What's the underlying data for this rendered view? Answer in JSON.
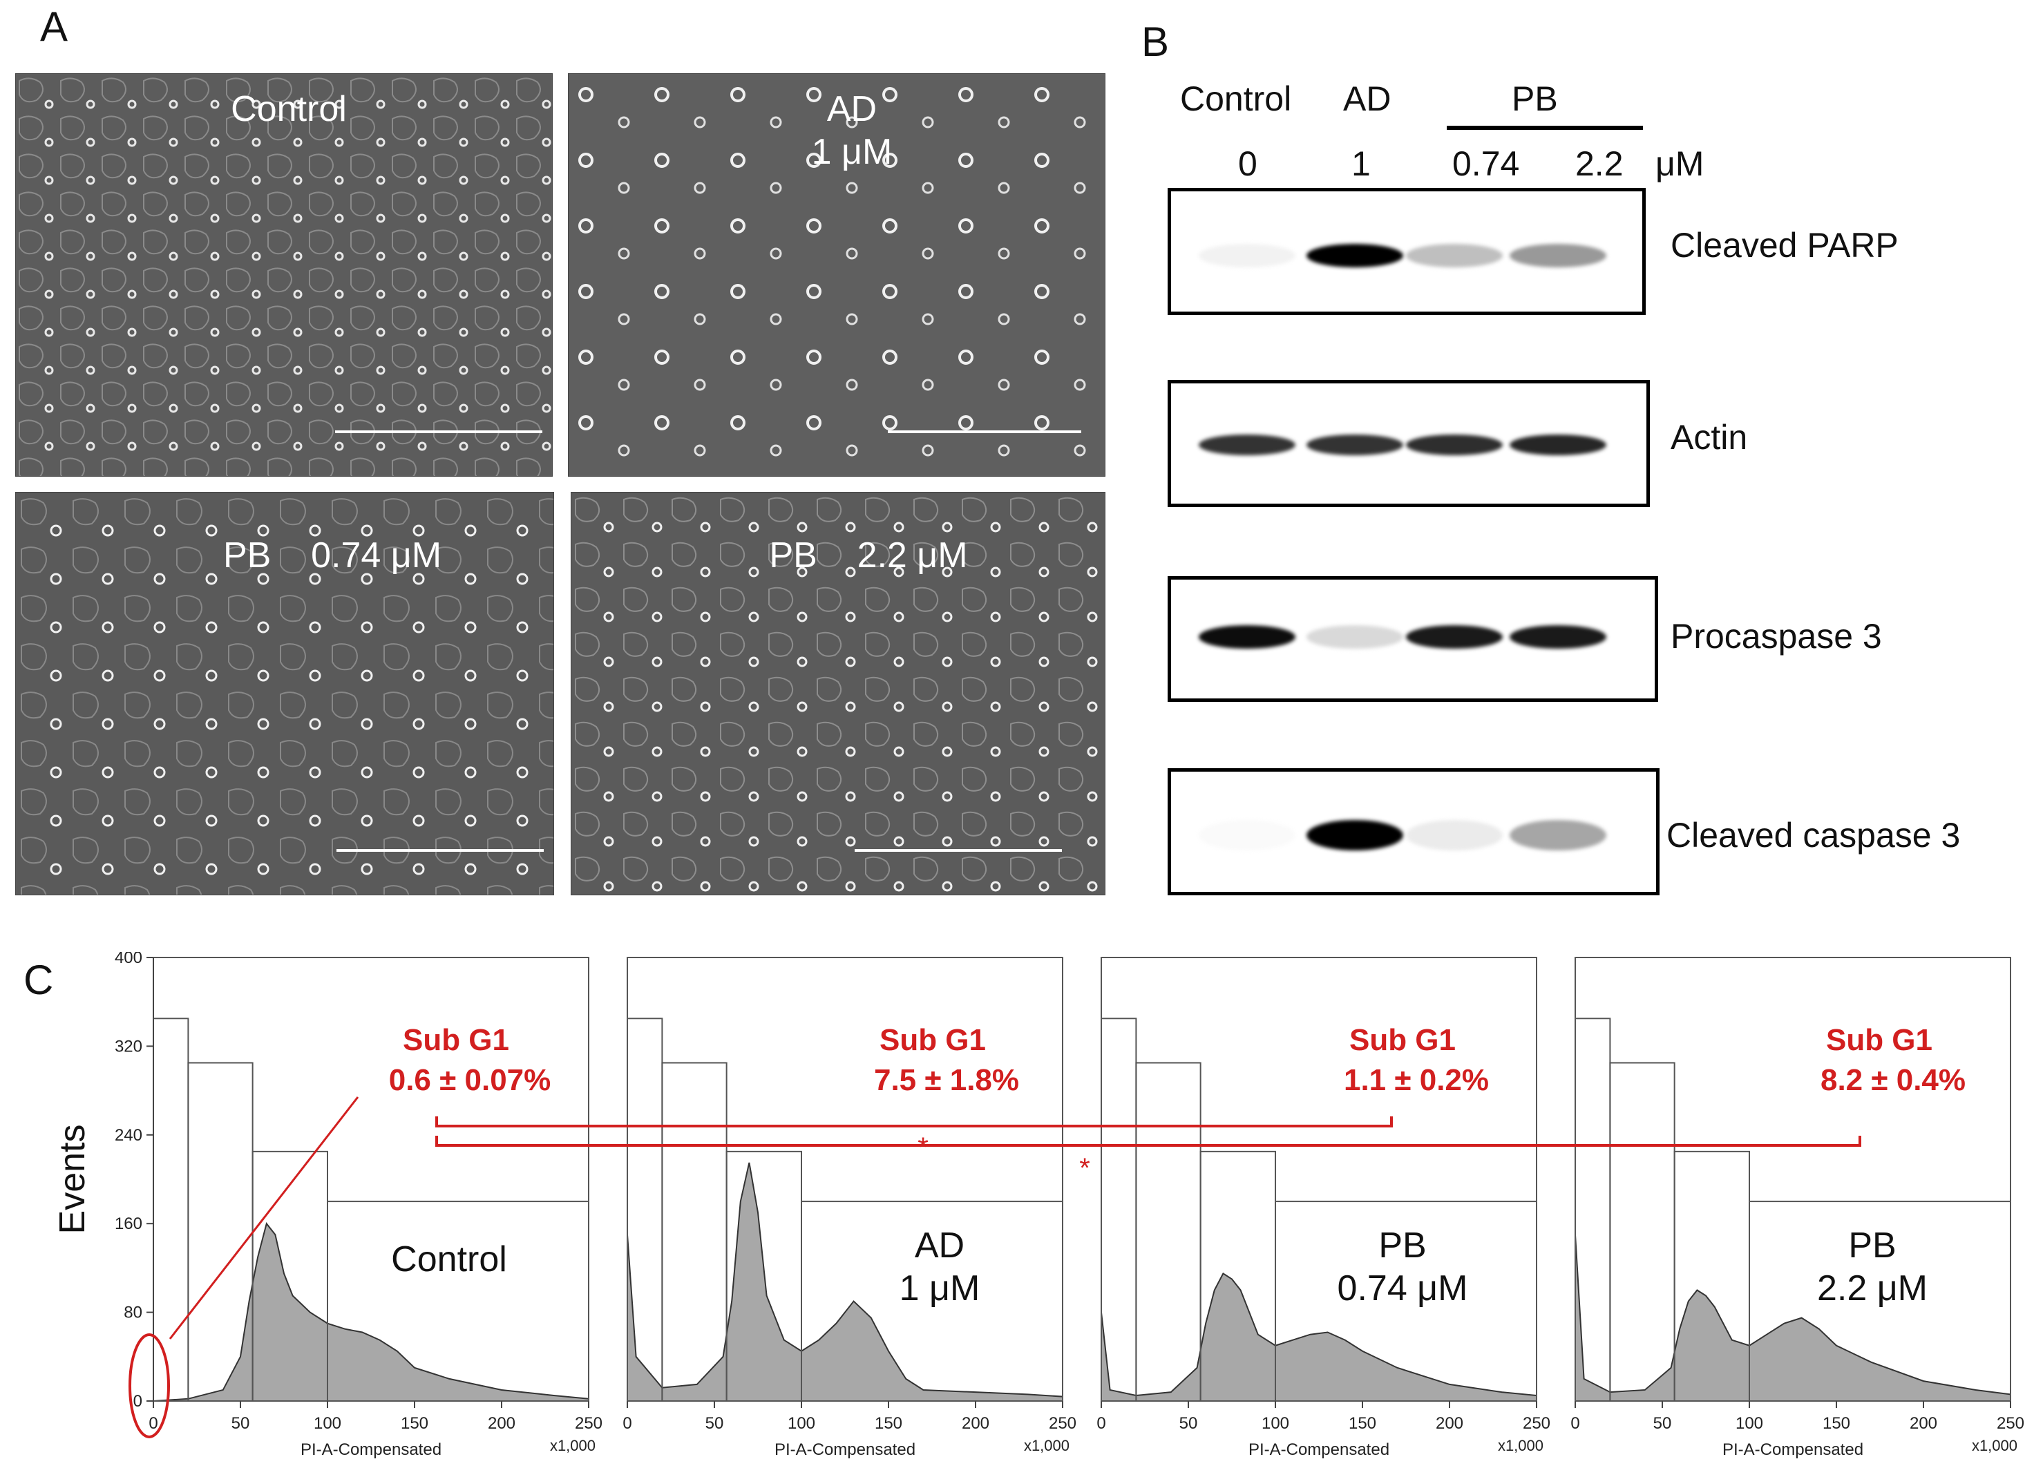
{
  "panel_a": {
    "letter": "A",
    "images": [
      {
        "label": "Control"
      },
      {
        "label": "AD\n1 μM"
      },
      {
        "label": "PB    0.74 μM"
      },
      {
        "label": "PB    2.2 μM"
      }
    ]
  },
  "panel_b": {
    "letter": "B",
    "lanes": [
      "Control",
      "AD",
      "PB"
    ],
    "doses": [
      "0",
      "1",
      "0.74",
      "2.2"
    ],
    "unit": "μM",
    "blots": [
      {
        "name": "Cleaved PARP",
        "intensity": [
          0.05,
          1.0,
          0.25,
          0.4
        ]
      },
      {
        "name": "Actin",
        "intensity": [
          0.8,
          0.8,
          0.82,
          0.85
        ]
      },
      {
        "name": "Procaspase 3",
        "intensity": [
          0.95,
          0.15,
          0.9,
          0.9
        ]
      },
      {
        "name": "Cleaved caspase 3",
        "intensity": [
          0.02,
          1.0,
          0.08,
          0.35
        ]
      }
    ]
  },
  "panel_c": {
    "letter": "C",
    "ylabel": "Events",
    "xlabel": "PI-A-Compensated",
    "x_multiplier": "x1,000",
    "significance": [
      "*",
      "*"
    ]
  },
  "chart_data": {
    "type": "area",
    "ylabel": "Events",
    "xlabel": "PI-A-Compensated",
    "ylim": [
      0,
      400
    ],
    "xlim": [
      0,
      250
    ],
    "yticks": [
      0,
      80,
      160,
      240,
      320,
      400
    ],
    "xticks": [
      0,
      50,
      100,
      150,
      200,
      250
    ],
    "histograms": [
      {
        "label": "Control",
        "sub_g1_title": "Sub G1",
        "sub_g1_value": "0.6 ± 0.07%",
        "x": [
          0,
          20,
          40,
          50,
          55,
          60,
          65,
          70,
          75,
          80,
          90,
          100,
          110,
          120,
          130,
          140,
          150,
          170,
          200,
          230,
          250
        ],
        "y": [
          0,
          2,
          10,
          40,
          90,
          130,
          160,
          150,
          115,
          95,
          80,
          70,
          65,
          62,
          55,
          45,
          30,
          20,
          10,
          5,
          2
        ]
      },
      {
        "label": "AD 1 μM",
        "sub_g1_title": "Sub G1",
        "sub_g1_value": "7.5 ± 1.8%",
        "x": [
          0,
          5,
          20,
          40,
          55,
          60,
          65,
          70,
          75,
          80,
          90,
          100,
          110,
          120,
          130,
          140,
          150,
          160,
          170,
          200,
          230,
          250
        ],
        "y": [
          150,
          40,
          12,
          15,
          40,
          90,
          180,
          215,
          170,
          95,
          55,
          45,
          55,
          70,
          90,
          75,
          45,
          20,
          10,
          8,
          6,
          4
        ]
      },
      {
        "label": "PB 0.74 μM",
        "sub_g1_title": "Sub G1",
        "sub_g1_value": "1.1 ± 0.2%",
        "x": [
          0,
          5,
          20,
          40,
          55,
          60,
          65,
          70,
          75,
          80,
          90,
          100,
          110,
          120,
          130,
          140,
          150,
          170,
          200,
          230,
          250
        ],
        "y": [
          80,
          10,
          5,
          8,
          30,
          70,
          100,
          115,
          110,
          100,
          60,
          50,
          55,
          60,
          62,
          55,
          45,
          30,
          15,
          8,
          5
        ]
      },
      {
        "label": "PB 2.2 μM",
        "sub_g1_title": "Sub G1",
        "sub_g1_value": "8.2 ± 0.4%",
        "x": [
          0,
          5,
          20,
          40,
          55,
          60,
          65,
          70,
          75,
          80,
          90,
          100,
          110,
          120,
          130,
          140,
          150,
          170,
          200,
          230,
          250
        ],
        "y": [
          150,
          20,
          8,
          10,
          30,
          65,
          90,
          100,
          95,
          85,
          55,
          50,
          60,
          70,
          75,
          65,
          50,
          35,
          18,
          10,
          6
        ]
      }
    ],
    "gates": [
      {
        "x": [
          0,
          20
        ],
        "y": 345
      },
      {
        "x": [
          20,
          57
        ],
        "y": 305
      },
      {
        "x": [
          57,
          100
        ],
        "y": 225
      },
      {
        "x": [
          100,
          250
        ],
        "y": 180
      }
    ]
  }
}
